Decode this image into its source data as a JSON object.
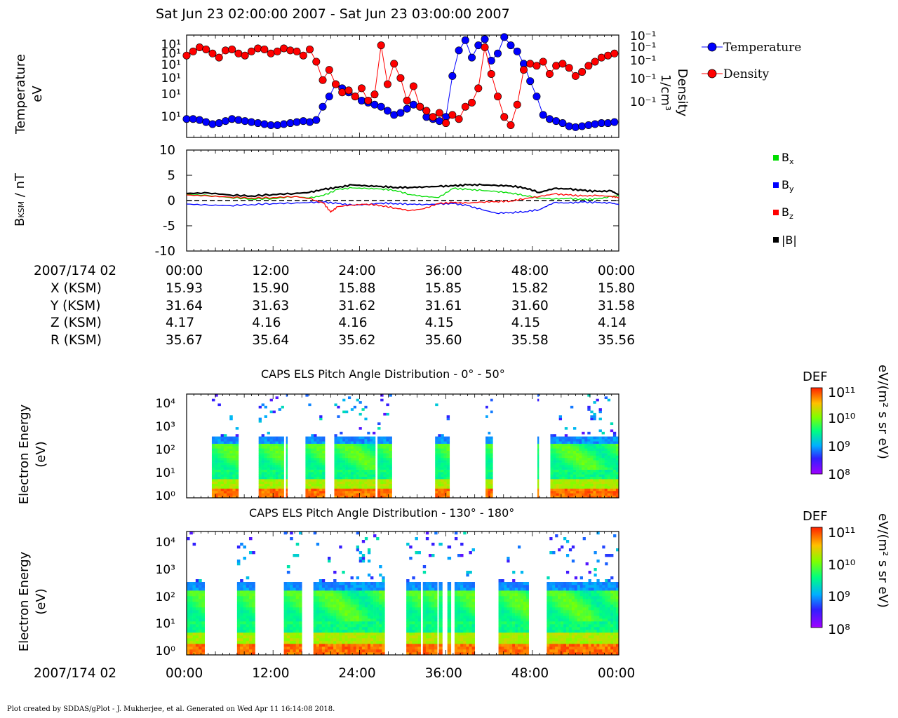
{
  "header": {
    "time_range": "Sat Jun 23 02:00:00 2007 - Sat Jun 23 03:00:00 2007"
  },
  "footer": {
    "credit": "Plot created by SDDAS/gPlot - J. Mukherjee, et al.  Generated on Wed Apr 11 16:14:08 2018."
  },
  "colors": {
    "temperature": "#0000ff",
    "density": "#ff0000",
    "bx": "#00dd00",
    "by": "#0000ff",
    "bz": "#ff0000",
    "bmag": "#000000"
  },
  "chart_data": [
    {
      "type": "scatter",
      "panel": "plasma-moments",
      "ylabel": [
        "Temperature",
        "eV"
      ],
      "ylabel_right": [
        "Density",
        "1/cm³"
      ],
      "ytick_labels_left": [
        "10¹",
        "10¹",
        "10¹",
        "10¹",
        "10¹",
        "10¹"
      ],
      "ytick_labels_right": [
        "10⁻¹",
        "10⁻¹",
        "10⁻¹",
        "10⁻¹",
        "10⁻¹"
      ],
      "xrange_minutes": [
        0,
        60
      ],
      "legend_position": "right",
      "series": [
        {
          "name": "Temperature",
          "color": "#0000ff",
          "marker": "circle",
          "x": [
            0.0,
            0.9,
            1.8,
            2.7,
            3.6,
            4.5,
            5.4,
            6.3,
            7.2,
            8.1,
            9.0,
            9.9,
            10.8,
            11.7,
            12.6,
            13.5,
            14.4,
            15.3,
            16.2,
            17.1,
            18.0,
            18.9,
            19.8,
            20.7,
            21.6,
            22.5,
            23.4,
            24.3,
            25.2,
            26.1,
            27.0,
            27.9,
            28.8,
            29.7,
            30.6,
            31.5,
            32.4,
            33.3,
            34.2,
            35.1,
            36.0,
            36.9,
            37.8,
            38.7,
            39.6,
            40.5,
            41.4,
            42.3,
            43.2,
            44.1,
            45.0,
            45.9,
            46.8,
            47.7,
            48.6,
            49.5,
            50.4,
            51.3,
            52.2,
            53.1,
            54.0,
            54.9,
            55.8,
            56.7,
            57.6,
            58.5,
            59.4
          ],
          "y": [
            18,
            18,
            17,
            15,
            13,
            14,
            16,
            18,
            17,
            16,
            15,
            14,
            13,
            12,
            12,
            13,
            14,
            15,
            16,
            15,
            17,
            30,
            40,
            52,
            48,
            44,
            40,
            36,
            34,
            32,
            30,
            26,
            22,
            24,
            28,
            32,
            30,
            20,
            18,
            16,
            20,
            60,
            85,
            95,
            78,
            90,
            96,
            75,
            82,
            98,
            90,
            84,
            72,
            55,
            40,
            22,
            18,
            16,
            14,
            11,
            10,
            11,
            12,
            13,
            14,
            14,
            15
          ]
        },
        {
          "name": "Density",
          "color": "#ff0000",
          "marker": "circle",
          "x": [
            0.0,
            0.9,
            1.8,
            2.7,
            3.6,
            4.5,
            5.4,
            6.3,
            7.2,
            8.1,
            9.0,
            9.9,
            10.8,
            11.7,
            12.6,
            13.5,
            14.4,
            15.3,
            16.2,
            17.1,
            18.0,
            18.9,
            19.8,
            20.7,
            21.6,
            22.5,
            23.4,
            24.3,
            25.2,
            26.1,
            27.0,
            27.9,
            28.8,
            29.7,
            30.6,
            31.5,
            32.4,
            33.3,
            34.2,
            35.1,
            36.0,
            36.9,
            37.8,
            38.7,
            39.6,
            40.5,
            41.4,
            42.3,
            43.2,
            44.1,
            45.0,
            45.9,
            46.8,
            47.7,
            48.6,
            49.5,
            50.4,
            51.3,
            52.2,
            53.1,
            54.0,
            54.9,
            55.8,
            56.7,
            57.6,
            58.5,
            59.4
          ],
          "y": [
            80,
            84,
            88,
            86,
            82,
            78,
            85,
            86,
            82,
            80,
            84,
            87,
            86,
            82,
            84,
            87,
            85,
            84,
            80,
            86,
            74,
            56,
            66,
            52,
            44,
            46,
            40,
            48,
            36,
            42,
            90,
            52,
            72,
            58,
            36,
            50,
            30,
            26,
            20,
            24,
            14,
            22,
            18,
            30,
            34,
            48,
            88,
            62,
            40,
            20,
            12,
            32,
            66,
            72,
            70,
            74,
            62,
            70,
            72,
            68,
            60,
            64,
            70,
            74,
            78,
            80,
            82
          ]
        }
      ]
    },
    {
      "type": "line",
      "panel": "magnetic-field",
      "ylabel": "B_KSM / nT",
      "ylim": [
        -10,
        10
      ],
      "yticks": [
        -10,
        -5,
        0,
        5,
        10
      ],
      "xrange_minutes": [
        0,
        60
      ],
      "legend_position": "right",
      "series": [
        {
          "name": "Bx",
          "color": "#00dd00",
          "x": [
            0,
            3,
            6,
            9,
            12,
            15,
            17,
            19,
            21,
            23,
            25,
            27,
            29,
            31,
            33,
            35,
            37,
            39,
            41,
            43,
            45,
            47,
            49,
            51,
            53,
            55,
            57,
            59,
            60
          ],
          "y": [
            1.2,
            1.0,
            0.6,
            0.3,
            0.4,
            0.8,
            0.5,
            1.0,
            2.2,
            2.5,
            2.4,
            2.3,
            2.0,
            1.2,
            0.8,
            0.6,
            2.4,
            2.2,
            2.0,
            1.8,
            1.5,
            1.0,
            0.5,
            0.3,
            0.4,
            0.2,
            0.3,
            0.8,
            1.0
          ]
        },
        {
          "name": "By",
          "color": "#0000ff",
          "x": [
            0,
            3,
            6,
            9,
            12,
            15,
            17,
            19,
            21,
            23,
            25,
            27,
            29,
            31,
            33,
            35,
            37,
            39,
            41,
            43,
            45,
            47,
            49,
            51,
            53,
            55,
            57,
            59,
            60
          ],
          "y": [
            -0.7,
            -0.9,
            -1.0,
            -0.8,
            -0.6,
            -0.5,
            -0.4,
            -0.3,
            -0.6,
            -0.9,
            -0.8,
            -0.5,
            -0.6,
            -0.7,
            -0.8,
            -0.7,
            -0.6,
            -1.0,
            -1.8,
            -2.5,
            -2.4,
            -2.2,
            -1.8,
            -0.4,
            -0.5,
            -0.3,
            -0.4,
            -0.5,
            -0.8
          ]
        },
        {
          "name": "Bz",
          "color": "#ff0000",
          "x": [
            0,
            3,
            6,
            9,
            12,
            15,
            17,
            19,
            20,
            21,
            23,
            25,
            27,
            29,
            31,
            33,
            35,
            37,
            39,
            41,
            43,
            45,
            47,
            49,
            51,
            53,
            55,
            57,
            59,
            60
          ],
          "y": [
            1.1,
            0.9,
            0.7,
            0.5,
            0.6,
            0.8,
            0.4,
            -0.5,
            -2.3,
            -1.2,
            -0.9,
            -0.7,
            -1.0,
            -1.5,
            -2.0,
            -1.6,
            -0.6,
            -0.4,
            -0.5,
            -0.3,
            -0.2,
            -0.1,
            0.4,
            0.8,
            1.3,
            1.1,
            0.9,
            1.0,
            0.8,
            0.6
          ]
        },
        {
          "name": "|B|",
          "color": "#000000",
          "x": [
            0,
            3,
            6,
            9,
            12,
            15,
            17,
            19,
            21,
            23,
            25,
            27,
            29,
            31,
            33,
            35,
            37,
            39,
            41,
            43,
            45,
            47,
            49,
            51,
            53,
            55,
            57,
            59,
            60
          ],
          "y": [
            1.4,
            1.5,
            1.1,
            0.9,
            1.2,
            1.4,
            1.6,
            2.2,
            2.6,
            3.1,
            2.9,
            2.8,
            2.6,
            2.6,
            2.7,
            2.8,
            2.9,
            3.1,
            3.1,
            3.0,
            2.9,
            2.5,
            1.6,
            2.4,
            2.3,
            2.0,
            1.8,
            1.9,
            1.1
          ]
        }
      ]
    },
    {
      "type": "heatmap",
      "panel": "els-low-pitch",
      "title": "CAPS ELS Pitch Angle Distribution - 0° - 50°",
      "ylabel": [
        "Electron Energy",
        "(eV)"
      ],
      "ytick_labels": [
        "10⁰",
        "10¹",
        "10²",
        "10³",
        "10⁴"
      ],
      "xrange_minutes": [
        0,
        60
      ],
      "data_intervals_minutes": [
        [
          3.5,
          7.2
        ],
        [
          10.0,
          13.5
        ],
        [
          13.8,
          14.0
        ],
        [
          16.5,
          19.2
        ],
        [
          20.5,
          26.2
        ],
        [
          26.5,
          28.5
        ],
        [
          34.5,
          36.5
        ],
        [
          41.5,
          42.5
        ],
        [
          48.7,
          48.9
        ],
        [
          50.5,
          60.0
        ]
      ],
      "colorbar": {
        "label": "DEF",
        "units": "eV/(m² s sr eV)",
        "tick_labels": [
          "10⁸",
          "10⁹",
          "10¹⁰",
          "10¹¹"
        ]
      }
    },
    {
      "type": "heatmap",
      "panel": "els-high-pitch",
      "title": "CAPS ELS Pitch Angle Distribution - 130° - 180°",
      "ylabel": [
        "Electron Energy",
        "(eV)"
      ],
      "ytick_labels": [
        "10⁰",
        "10¹",
        "10²",
        "10³",
        "10⁴"
      ],
      "xrange_minutes": [
        0,
        60
      ],
      "data_intervals_minutes": [
        [
          0.0,
          2.5
        ],
        [
          7.0,
          9.5
        ],
        [
          13.5,
          16.0
        ],
        [
          17.6,
          27.5
        ],
        [
          30.5,
          32.5
        ],
        [
          32.8,
          34.8
        ],
        [
          35.0,
          35.5
        ],
        [
          36.2,
          36.7
        ],
        [
          37.2,
          40.0
        ],
        [
          43.3,
          47.5
        ],
        [
          50.0,
          60.0
        ]
      ],
      "colorbar": {
        "label": "DEF",
        "units": "eV/(m² s sr eV)",
        "tick_labels": [
          "10⁸",
          "10⁹",
          "10¹⁰",
          "10¹¹"
        ]
      }
    }
  ],
  "time_axis": {
    "date_label": "2007/174 02",
    "tick_labels": [
      "00:00",
      "12:00",
      "24:00",
      "36:00",
      "48:00",
      "00:00"
    ]
  },
  "ephemeris": [
    {
      "label": "X (KSM)",
      "values": [
        "15.93",
        "15.90",
        "15.88",
        "15.85",
        "15.82",
        "15.80"
      ]
    },
    {
      "label": "Y (KSM)",
      "values": [
        "31.64",
        "31.63",
        "31.62",
        "31.61",
        "31.60",
        "31.58"
      ]
    },
    {
      "label": "Z (KSM)",
      "values": [
        "4.17",
        "4.16",
        "4.16",
        "4.15",
        "4.15",
        "4.14"
      ]
    },
    {
      "label": "R (KSM)",
      "values": [
        "35.67",
        "35.64",
        "35.62",
        "35.60",
        "35.58",
        "35.56"
      ]
    }
  ],
  "legend_plasma": [
    "Temperature",
    "Density"
  ],
  "legend_mag": [
    "B",
    "B",
    "B",
    "|B|"
  ],
  "legend_mag_sub": [
    "x",
    "y",
    "z"
  ]
}
